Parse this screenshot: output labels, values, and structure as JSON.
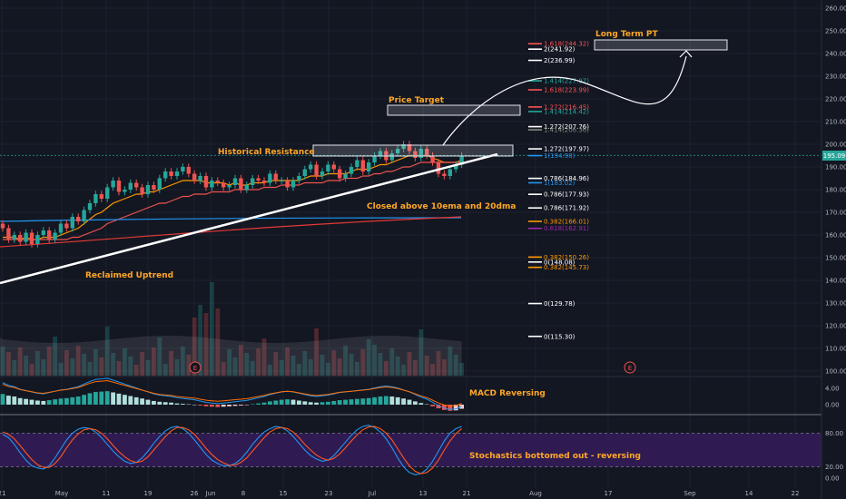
{
  "chart_data": [
    {
      "type": "candlestick",
      "title": "",
      "xlabel": "",
      "ylabel": "",
      "ylim": [
        98,
        263
      ],
      "y_ticks": [
        "260.00",
        "250.00",
        "240.00",
        "230.00",
        "220.00",
        "210.00",
        "200.00",
        "190.00",
        "180.00",
        "170.00",
        "160.00",
        "150.00",
        "140.00",
        "130.00",
        "120.00",
        "110.00",
        "100.00"
      ],
      "x_ticks": [
        "21",
        "May",
        "11",
        "19",
        "26",
        "Jun",
        "8",
        "15",
        "23",
        "Jul",
        "13",
        "21",
        "Aug",
        "17",
        "Sep",
        "14",
        "22"
      ],
      "last_price_label": "195.09",
      "last_price": 195.09,
      "series": [
        {
          "name": "price",
          "values": [
            163,
            158,
            160,
            157,
            161,
            156,
            160,
            162,
            158,
            161,
            165,
            163,
            168,
            166,
            171,
            174,
            178,
            176,
            181,
            184,
            179,
            180,
            183,
            181,
            178,
            182,
            180,
            185,
            188,
            186,
            188,
            190,
            187,
            184,
            186,
            181,
            184,
            183,
            181,
            182,
            185,
            180,
            182,
            185,
            184,
            183,
            187,
            184,
            184,
            181,
            184,
            186,
            189,
            191,
            186,
            188,
            191,
            189,
            185,
            187,
            190,
            193,
            188,
            192,
            195,
            197,
            193,
            196,
            198,
            200,
            197,
            194,
            198,
            195,
            192,
            187,
            186,
            189,
            191,
            195
          ]
        },
        {
          "name": "10ema",
          "values": [
            159,
            159,
            159,
            158,
            159,
            158,
            158,
            159,
            159,
            159,
            160,
            161,
            162,
            163,
            165,
            167,
            169,
            170,
            172,
            174,
            175,
            176,
            177,
            178,
            178,
            179,
            179,
            180,
            181,
            182,
            183,
            184,
            184,
            184,
            184,
            183,
            183,
            183,
            183,
            182,
            183,
            182,
            182,
            183,
            183,
            183,
            184,
            184,
            184,
            184,
            184,
            184,
            185,
            186,
            186,
            186,
            187,
            187,
            187,
            187,
            188,
            189,
            189,
            189,
            190,
            191,
            191,
            192,
            193,
            194,
            195,
            195,
            195,
            195,
            194,
            193,
            192,
            192,
            192,
            193
          ]
        },
        {
          "name": "20dma",
          "values": [
            158,
            158,
            158,
            158,
            158,
            158,
            158,
            158,
            158,
            158,
            158,
            158,
            159,
            159,
            160,
            161,
            162,
            163,
            165,
            166,
            167,
            168,
            169,
            170,
            171,
            172,
            173,
            174,
            174,
            175,
            176,
            177,
            177,
            178,
            178,
            178,
            179,
            179,
            179,
            179,
            180,
            180,
            180,
            180,
            180,
            181,
            181,
            181,
            182,
            182,
            182,
            182,
            183,
            183,
            183,
            183,
            184,
            184,
            184,
            185,
            185,
            185,
            186,
            186,
            187,
            187,
            188,
            188,
            189,
            190,
            190,
            191,
            192,
            192,
            192,
            192,
            192,
            192,
            192,
            192
          ]
        }
      ],
      "horizontal_levels": [
        {
          "label": "1.618(244.32)",
          "value": 244.32,
          "color": "#ff5252"
        },
        {
          "label": "2(241.92)",
          "value": 241.92,
          "color": "#ffffff"
        },
        {
          "label": "2(236.99)",
          "value": 236.99,
          "color": "#ffffff"
        },
        {
          "label": "1.414(227.97)",
          "value": 227.97,
          "color": "#26a69a"
        },
        {
          "label": "1.618(223.99)",
          "value": 223.99,
          "color": "#ff5252"
        },
        {
          "label": "1.272(216.45)",
          "value": 216.45,
          "color": "#ff5252"
        },
        {
          "label": "1.414(214.42)",
          "value": 214.42,
          "color": "#26a69a"
        },
        {
          "label": "1.272(207.76)",
          "value": 207.76,
          "color": "#ffffff"
        },
        {
          "label": "1.414(206.36)",
          "value": 206.36,
          "color": "#7e8c79"
        },
        {
          "label": "1.272(197.97)",
          "value": 197.97,
          "color": "#ffffff"
        },
        {
          "label": "1(194.98)",
          "value": 194.98,
          "color": "#2196f3"
        },
        {
          "label": "0.786(184.96)",
          "value": 184.96,
          "color": "#ffffff"
        },
        {
          "label": "1(183.02)",
          "value": 183.02,
          "color": "#2196f3"
        },
        {
          "label": "0.786(177.93)",
          "value": 177.93,
          "color": "#ffffff"
        },
        {
          "label": "0.786(171.92)",
          "value": 171.92,
          "color": "#ffffff"
        },
        {
          "label": "0.382(166.01)",
          "value": 166.01,
          "color": "#ff9800"
        },
        {
          "label": "0.618(162.91)",
          "value": 162.91,
          "color": "#9c27b0"
        },
        {
          "label": "0.382(150.26)",
          "value": 150.26,
          "color": "#ff9800"
        },
        {
          "label": "0(148.08)",
          "value": 148.08,
          "color": "#ffffff"
        },
        {
          "label": "0.382(145.73)",
          "value": 145.73,
          "color": "#ff9800"
        },
        {
          "label": "0(129.78)",
          "value": 129.78,
          "color": "#ffffff"
        },
        {
          "label": "0(115.30)",
          "value": 115.3,
          "color": "#ffffff"
        }
      ]
    },
    {
      "type": "bar",
      "name": "MACD histogram",
      "y_ticks": [
        "4.00",
        "0.00"
      ],
      "values": [
        2.6,
        2.2,
        2.0,
        1.6,
        1.4,
        1.2,
        1.0,
        0.9,
        1.1,
        1.3,
        1.5,
        1.6,
        1.8,
        2.0,
        2.4,
        2.8,
        3.1,
        3.2,
        3.3,
        3.0,
        2.7,
        2.4,
        2.1,
        1.8,
        1.5,
        1.2,
        0.9,
        0.7,
        0.6,
        0.5,
        0.3,
        0.2,
        0.1,
        0,
        -0.2,
        -0.4,
        -0.5,
        -0.6,
        -0.5,
        -0.4,
        -0.3,
        -0.2,
        -0.1,
        0.1,
        0.3,
        0.5,
        0.8,
        1.0,
        1.2,
        1.3,
        1.2,
        1.0,
        0.8,
        0.6,
        0.5,
        0.6,
        0.7,
        0.9,
        1.1,
        1.2,
        1.3,
        1.4,
        1.5,
        1.6,
        1.8,
        2.0,
        2.1,
        2.0,
        1.8,
        1.5,
        1.2,
        0.8,
        0.4,
        0.1,
        -0.4,
        -0.9,
        -1.3,
        -1.5,
        -1.4,
        -1.0
      ]
    },
    {
      "type": "line",
      "name": "Stochastics",
      "y_ticks": [
        "80.00",
        "20.00",
        "0.00"
      ],
      "series": [
        {
          "name": "%K",
          "values": [
            78,
            72,
            60,
            45,
            32,
            22,
            18,
            16,
            22,
            36,
            52,
            68,
            80,
            87,
            90,
            88,
            82,
            72,
            60,
            48,
            38,
            30,
            26,
            28,
            36,
            48,
            62,
            74,
            84,
            90,
            92,
            88,
            80,
            68,
            55,
            42,
            32,
            26,
            22,
            22,
            26,
            34,
            46,
            60,
            72,
            82,
            88,
            92,
            90,
            84,
            74,
            62,
            50,
            40,
            34,
            30,
            32,
            40,
            52,
            64,
            76,
            86,
            92,
            94,
            90,
            82,
            70,
            54,
            36,
            20,
            10,
            6,
            8,
            16,
            30,
            48,
            66,
            80,
            88,
            92
          ]
        },
        {
          "name": "%D",
          "values": [
            82,
            78,
            70,
            58,
            45,
            33,
            24,
            19,
            19,
            26,
            38,
            54,
            68,
            79,
            86,
            88,
            86,
            80,
            70,
            58,
            47,
            38,
            31,
            28,
            30,
            38,
            50,
            62,
            74,
            84,
            90,
            90,
            86,
            78,
            66,
            53,
            42,
            33,
            27,
            23,
            23,
            28,
            36,
            48,
            60,
            72,
            82,
            88,
            90,
            88,
            82,
            72,
            60,
            50,
            41,
            35,
            32,
            35,
            43,
            54,
            66,
            77,
            86,
            91,
            92,
            88,
            80,
            68,
            52,
            36,
            22,
            12,
            8,
            10,
            18,
            32,
            50,
            66,
            79,
            88
          ]
        }
      ]
    }
  ],
  "annotations": {
    "long_term_pt": "Long Term PT",
    "price_target": "Price Target",
    "historical_resistance": "Historical Resistance",
    "closed_above": "Closed above 10ema and 20dma",
    "reclaimed_uptrend": "Reclaimed Uptrend",
    "macd_reversing": "MACD Reversing",
    "stochastics": "Stochastics bottomed out - reversing",
    "earnings_marker": "E"
  },
  "colors": {
    "background": "#131722",
    "up": "#26a69a",
    "down": "#ef5350",
    "annotation": "#ffa726",
    "ema10": "#ff9800",
    "dma20": "#ef5350",
    "ma50": "#2196f3",
    "ma200": "#e53935",
    "stoch_k": "#2196f3",
    "stoch_d": "#ff5722",
    "stoch_band": "#3a1e63",
    "last_price": "#26a69a"
  }
}
